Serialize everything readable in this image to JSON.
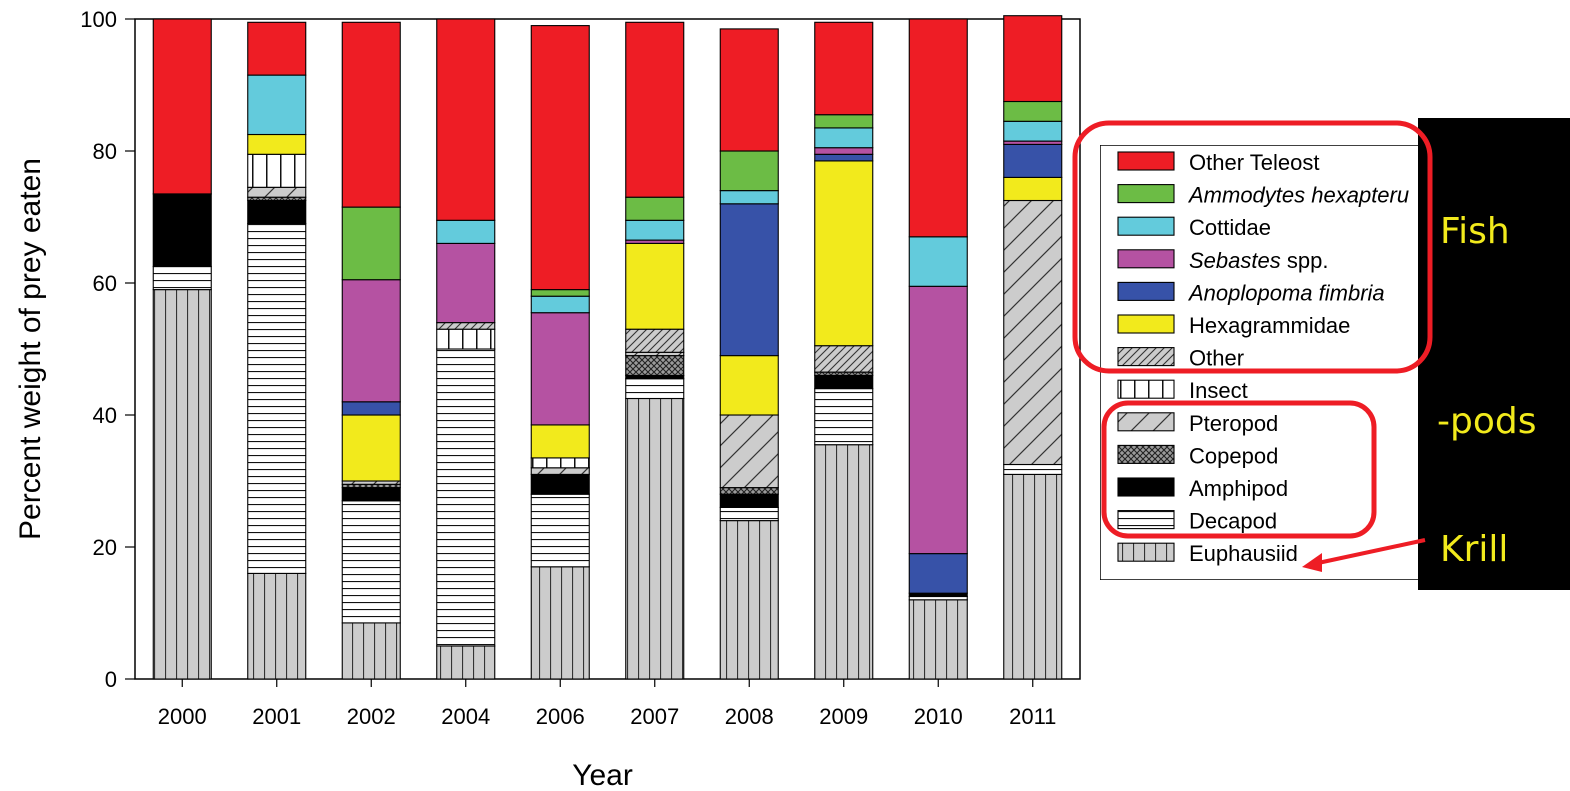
{
  "chart_data": {
    "type": "bar",
    "stacked": true,
    "ylabel": "Percent weight of prey eaten",
    "xlabel": "Year",
    "ylim": [
      0,
      100
    ],
    "yticks": [
      0,
      20,
      40,
      60,
      80,
      100
    ],
    "categories": [
      "2000",
      "2001",
      "2002",
      "2004",
      "2006",
      "2007",
      "2008",
      "2009",
      "2010",
      "2011"
    ],
    "legend_position": "right",
    "series": [
      {
        "name": "Euphausiid",
        "pattern": "vlines",
        "color": "#cccccc",
        "values": [
          59,
          16,
          8.5,
          5,
          17,
          42.5,
          24,
          35.5,
          12,
          31
        ]
      },
      {
        "name": "Decapod",
        "pattern": "hlines",
        "color": "#ffffff",
        "values": [
          3.5,
          53,
          18.5,
          45,
          11,
          3,
          2,
          8.5,
          0.5,
          1.5
        ]
      },
      {
        "name": "Amphipod",
        "pattern": "solid",
        "color": "#000000",
        "values": [
          11,
          3.5,
          2,
          0,
          3,
          0.5,
          2,
          2,
          0.5,
          0
        ]
      },
      {
        "name": "Copepod",
        "pattern": "crosshatch",
        "color": "#555555",
        "values": [
          0,
          0.5,
          0.5,
          0,
          0,
          3,
          1,
          0.5,
          0,
          0
        ]
      },
      {
        "name": "Pteropod",
        "pattern": "diag-wide",
        "color": "#cccccc",
        "values": [
          0,
          1.5,
          0.5,
          0,
          1,
          0.5,
          11,
          0,
          0,
          40
        ]
      },
      {
        "name": "Insect",
        "pattern": "grid",
        "color": "#ffffff",
        "values": [
          0,
          5,
          0,
          3,
          1.5,
          0,
          0,
          0,
          0,
          0
        ]
      },
      {
        "name": "Other",
        "pattern": "diag-dense",
        "color": "#cccccc",
        "values": [
          0,
          0,
          0,
          1,
          0,
          3.5,
          0,
          4,
          0,
          0
        ]
      },
      {
        "name": "Hexagrammidae",
        "pattern": "solid",
        "color": "#f2ea1c",
        "values": [
          0,
          3,
          10,
          0,
          5,
          13,
          9,
          28,
          0,
          3.5
        ]
      },
      {
        "name": "Anoplopoma fimbria",
        "italic": true,
        "pattern": "solid",
        "color": "#3752a8",
        "values": [
          0,
          0,
          2,
          0,
          0,
          0,
          23,
          1,
          6,
          5
        ]
      },
      {
        "name": "Sebastes spp.",
        "italic_part": "Sebastes",
        "pattern": "solid",
        "color": "#b552a2",
        "values": [
          0,
          0,
          18.5,
          12,
          17,
          0.5,
          0,
          1,
          40.5,
          0.5
        ]
      },
      {
        "name": "Cottidae",
        "pattern": "solid",
        "color": "#63cbdc",
        "values": [
          0,
          9,
          0,
          3.5,
          2.5,
          3,
          2,
          3,
          7.5,
          3
        ]
      },
      {
        "name": "Ammodytes hexapterus",
        "italic": true,
        "pattern": "solid",
        "color": "#6cbc45",
        "values": [
          0,
          0,
          11,
          0,
          1,
          3.5,
          6,
          2,
          0,
          3
        ]
      },
      {
        "name": "Other Teleost",
        "pattern": "solid",
        "color": "#ee1d25",
        "values": [
          26.5,
          8,
          28,
          30.5,
          40,
          26.5,
          18.5,
          14,
          33,
          13
        ]
      }
    ],
    "legend_order": [
      "Other Teleost",
      "Ammodytes hexapterus",
      "Cottidae",
      "Sebastes spp.",
      "Anoplopoma fimbria",
      "Hexagrammidae",
      "Other",
      "Insect",
      "Pteropod",
      "Copepod",
      "Amphipod",
      "Decapod",
      "Euphausiid"
    ],
    "legend_visible_text": {
      "Ammodytes hexapterus": "Ammodytes hexapteru",
      "Anoplopoma fimbria": "Anoplopoma fimbria",
      "Euphausiid": "Euphausiid"
    }
  },
  "annotations": {
    "fish_label": "Fish",
    "pods_label": "-pods",
    "krill_label": "Krill",
    "text_color": "#f2ea1c",
    "panel_color": "#000000",
    "highlight_color": "#ee1d25"
  }
}
